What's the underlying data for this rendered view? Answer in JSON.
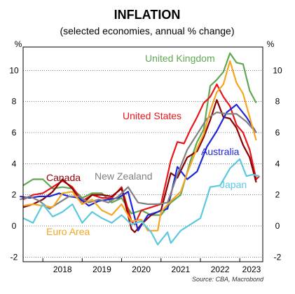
{
  "chart_data": {
    "type": "line",
    "title": "INFLATION",
    "subtitle": "(selected economies, annual % change)",
    "unit_left": "%",
    "unit_right": "%",
    "source": "Source: CBA, Macrobond",
    "x_range": [
      "2017-07",
      "2023-08"
    ],
    "ylim": [
      -2.3,
      11.5
    ],
    "y_ticks": [
      -2,
      0,
      2,
      4,
      6,
      8,
      10
    ],
    "x_tick_labels": [
      "2018",
      "2019",
      "2020",
      "2021",
      "2022",
      "2023"
    ],
    "grid": true,
    "series": [
      {
        "name": "United Kingdom",
        "color": "#5fa84f",
        "points": [
          [
            "2017-07",
            2.6
          ],
          [
            "2017-10",
            3.0
          ],
          [
            "2018-01",
            3.0
          ],
          [
            "2018-04",
            2.4
          ],
          [
            "2018-07",
            2.5
          ],
          [
            "2018-10",
            2.4
          ],
          [
            "2019-01",
            1.8
          ],
          [
            "2019-04",
            2.1
          ],
          [
            "2019-07",
            2.1
          ],
          [
            "2019-10",
            1.5
          ],
          [
            "2020-01",
            1.8
          ],
          [
            "2020-04",
            0.8
          ],
          [
            "2020-07",
            1.0
          ],
          [
            "2020-10",
            0.7
          ],
          [
            "2021-01",
            0.7
          ],
          [
            "2021-04",
            1.5
          ],
          [
            "2021-07",
            2.0
          ],
          [
            "2021-10",
            4.2
          ],
          [
            "2021-12",
            5.4
          ],
          [
            "2022-02",
            6.2
          ],
          [
            "2022-04",
            9.0
          ],
          [
            "2022-06",
            9.4
          ],
          [
            "2022-08",
            9.9
          ],
          [
            "2022-10",
            11.1
          ],
          [
            "2022-12",
            10.5
          ],
          [
            "2023-02",
            10.4
          ],
          [
            "2023-04",
            8.7
          ],
          [
            "2023-06",
            7.9
          ]
        ]
      },
      {
        "name": "United States",
        "color": "#e8161b",
        "points": [
          [
            "2017-07",
            1.7
          ],
          [
            "2017-10",
            2.0
          ],
          [
            "2018-01",
            2.1
          ],
          [
            "2018-04",
            2.5
          ],
          [
            "2018-07",
            2.9
          ],
          [
            "2018-10",
            2.5
          ],
          [
            "2019-01",
            1.6
          ],
          [
            "2019-04",
            2.0
          ],
          [
            "2019-07",
            1.8
          ],
          [
            "2019-10",
            1.8
          ],
          [
            "2020-01",
            2.5
          ],
          [
            "2020-04",
            0.3
          ],
          [
            "2020-05",
            0.1
          ],
          [
            "2020-07",
            1.0
          ],
          [
            "2020-10",
            1.2
          ],
          [
            "2021-01",
            1.4
          ],
          [
            "2021-04",
            4.2
          ],
          [
            "2021-06",
            5.4
          ],
          [
            "2021-08",
            5.3
          ],
          [
            "2021-10",
            6.2
          ],
          [
            "2021-12",
            7.0
          ],
          [
            "2022-02",
            7.9
          ],
          [
            "2022-04",
            8.3
          ],
          [
            "2022-06",
            9.1
          ],
          [
            "2022-08",
            8.3
          ],
          [
            "2022-10",
            7.7
          ],
          [
            "2022-12",
            6.5
          ],
          [
            "2023-02",
            6.0
          ],
          [
            "2023-04",
            4.9
          ],
          [
            "2023-06",
            3.0
          ],
          [
            "2023-07",
            3.2
          ]
        ]
      },
      {
        "name": "Canada",
        "color": "#8b0000",
        "points": [
          [
            "2017-07",
            1.2
          ],
          [
            "2017-10",
            1.4
          ],
          [
            "2018-01",
            1.7
          ],
          [
            "2018-04",
            2.2
          ],
          [
            "2018-07",
            3.0
          ],
          [
            "2018-10",
            2.4
          ],
          [
            "2019-01",
            1.4
          ],
          [
            "2019-04",
            2.0
          ],
          [
            "2019-07",
            2.0
          ],
          [
            "2019-10",
            1.9
          ],
          [
            "2020-01",
            2.4
          ],
          [
            "2020-04",
            -0.2
          ],
          [
            "2020-05",
            -0.4
          ],
          [
            "2020-07",
            0.1
          ],
          [
            "2020-10",
            0.7
          ],
          [
            "2021-01",
            1.0
          ],
          [
            "2021-04",
            3.4
          ],
          [
            "2021-06",
            3.1
          ],
          [
            "2021-09",
            4.4
          ],
          [
            "2021-12",
            4.8
          ],
          [
            "2022-02",
            5.7
          ],
          [
            "2022-04",
            6.8
          ],
          [
            "2022-06",
            8.1
          ],
          [
            "2022-08",
            7.0
          ],
          [
            "2022-10",
            6.9
          ],
          [
            "2022-12",
            6.3
          ],
          [
            "2023-02",
            5.2
          ],
          [
            "2023-04",
            4.4
          ],
          [
            "2023-06",
            2.8
          ]
        ]
      },
      {
        "name": "Australia",
        "color": "#1f26d6",
        "points": [
          [
            "2017-06",
            1.9
          ],
          [
            "2017-09",
            1.8
          ],
          [
            "2017-12",
            1.9
          ],
          [
            "2018-03",
            1.9
          ],
          [
            "2018-06",
            2.1
          ],
          [
            "2018-09",
            1.9
          ],
          [
            "2018-12",
            1.8
          ],
          [
            "2019-03",
            1.3
          ],
          [
            "2019-06",
            1.6
          ],
          [
            "2019-09",
            1.7
          ],
          [
            "2019-12",
            1.8
          ],
          [
            "2020-03",
            2.2
          ],
          [
            "2020-06",
            -0.3
          ],
          [
            "2020-09",
            0.7
          ],
          [
            "2020-12",
            0.9
          ],
          [
            "2021-03",
            1.1
          ],
          [
            "2021-06",
            3.8
          ],
          [
            "2021-09",
            3.0
          ],
          [
            "2021-12",
            3.5
          ],
          [
            "2022-03",
            5.1
          ],
          [
            "2022-06",
            6.1
          ],
          [
            "2022-09",
            7.3
          ],
          [
            "2022-12",
            7.8
          ],
          [
            "2023-03",
            7.0
          ],
          [
            "2023-06",
            6.0
          ]
        ]
      },
      {
        "name": "New Zealand",
        "color": "#808080",
        "points": [
          [
            "2017-06",
            1.7
          ],
          [
            "2017-09",
            1.9
          ],
          [
            "2017-12",
            1.6
          ],
          [
            "2018-03",
            1.1
          ],
          [
            "2018-06",
            1.5
          ],
          [
            "2018-09",
            1.9
          ],
          [
            "2018-12",
            1.9
          ],
          [
            "2019-03",
            1.5
          ],
          [
            "2019-06",
            1.7
          ],
          [
            "2019-09",
            1.5
          ],
          [
            "2019-12",
            1.9
          ],
          [
            "2020-03",
            2.5
          ],
          [
            "2020-06",
            1.5
          ],
          [
            "2020-09",
            1.4
          ],
          [
            "2020-12",
            1.4
          ],
          [
            "2021-03",
            1.5
          ],
          [
            "2021-06",
            3.3
          ],
          [
            "2021-09",
            4.9
          ],
          [
            "2021-12",
            5.9
          ],
          [
            "2022-03",
            6.9
          ],
          [
            "2022-06",
            7.3
          ],
          [
            "2022-09",
            7.2
          ],
          [
            "2022-12",
            7.2
          ],
          [
            "2023-03",
            6.7
          ],
          [
            "2023-06",
            6.0
          ]
        ]
      },
      {
        "name": "Euro Area",
        "color": "#f5a623",
        "points": [
          [
            "2017-07",
            1.3
          ],
          [
            "2017-10",
            1.4
          ],
          [
            "2018-01",
            1.3
          ],
          [
            "2018-04",
            1.2
          ],
          [
            "2018-07",
            2.1
          ],
          [
            "2018-10",
            2.2
          ],
          [
            "2019-01",
            1.4
          ],
          [
            "2019-04",
            1.7
          ],
          [
            "2019-07",
            1.0
          ],
          [
            "2019-10",
            0.7
          ],
          [
            "2020-01",
            1.4
          ],
          [
            "2020-04",
            0.3
          ],
          [
            "2020-07",
            0.4
          ],
          [
            "2020-09",
            -0.3
          ],
          [
            "2020-12",
            -0.3
          ],
          [
            "2021-01",
            0.9
          ],
          [
            "2021-04",
            1.6
          ],
          [
            "2021-07",
            2.2
          ],
          [
            "2021-09",
            3.4
          ],
          [
            "2021-12",
            5.0
          ],
          [
            "2022-02",
            5.9
          ],
          [
            "2022-04",
            7.4
          ],
          [
            "2022-06",
            8.6
          ],
          [
            "2022-08",
            9.1
          ],
          [
            "2022-10",
            10.6
          ],
          [
            "2022-12",
            9.2
          ],
          [
            "2023-02",
            8.5
          ],
          [
            "2023-04",
            7.0
          ],
          [
            "2023-06",
            5.5
          ]
        ]
      },
      {
        "name": "Japan",
        "color": "#5bc8e0",
        "points": [
          [
            "2017-07",
            0.5
          ],
          [
            "2017-10",
            0.2
          ],
          [
            "2018-01",
            1.4
          ],
          [
            "2018-04",
            0.6
          ],
          [
            "2018-07",
            0.9
          ],
          [
            "2018-10",
            1.4
          ],
          [
            "2019-01",
            0.2
          ],
          [
            "2019-04",
            0.9
          ],
          [
            "2019-07",
            0.5
          ],
          [
            "2019-10",
            0.2
          ],
          [
            "2020-01",
            0.7
          ],
          [
            "2020-04",
            0.1
          ],
          [
            "2020-07",
            0.3
          ],
          [
            "2020-10",
            -0.4
          ],
          [
            "2020-12",
            -1.2
          ],
          [
            "2021-03",
            -0.4
          ],
          [
            "2021-04",
            -1.1
          ],
          [
            "2021-07",
            -0.3
          ],
          [
            "2021-10",
            0.1
          ],
          [
            "2022-01",
            0.5
          ],
          [
            "2022-04",
            2.5
          ],
          [
            "2022-07",
            2.6
          ],
          [
            "2022-10",
            3.7
          ],
          [
            "2023-01",
            4.3
          ],
          [
            "2023-03",
            3.2
          ],
          [
            "2023-05",
            3.3
          ],
          [
            "2023-07",
            3.2
          ]
        ]
      }
    ],
    "labels": [
      {
        "series": "United Kingdom",
        "text": "United Kingdom"
      },
      {
        "series": "United States",
        "text": "United States"
      },
      {
        "series": "Canada",
        "text": "Canada"
      },
      {
        "series": "Australia",
        "text": "Australia"
      },
      {
        "series": "New Zealand",
        "text": "New Zealand"
      },
      {
        "series": "Euro Area",
        "text": "Euro Area"
      },
      {
        "series": "Japan",
        "text": "Japan"
      }
    ]
  }
}
